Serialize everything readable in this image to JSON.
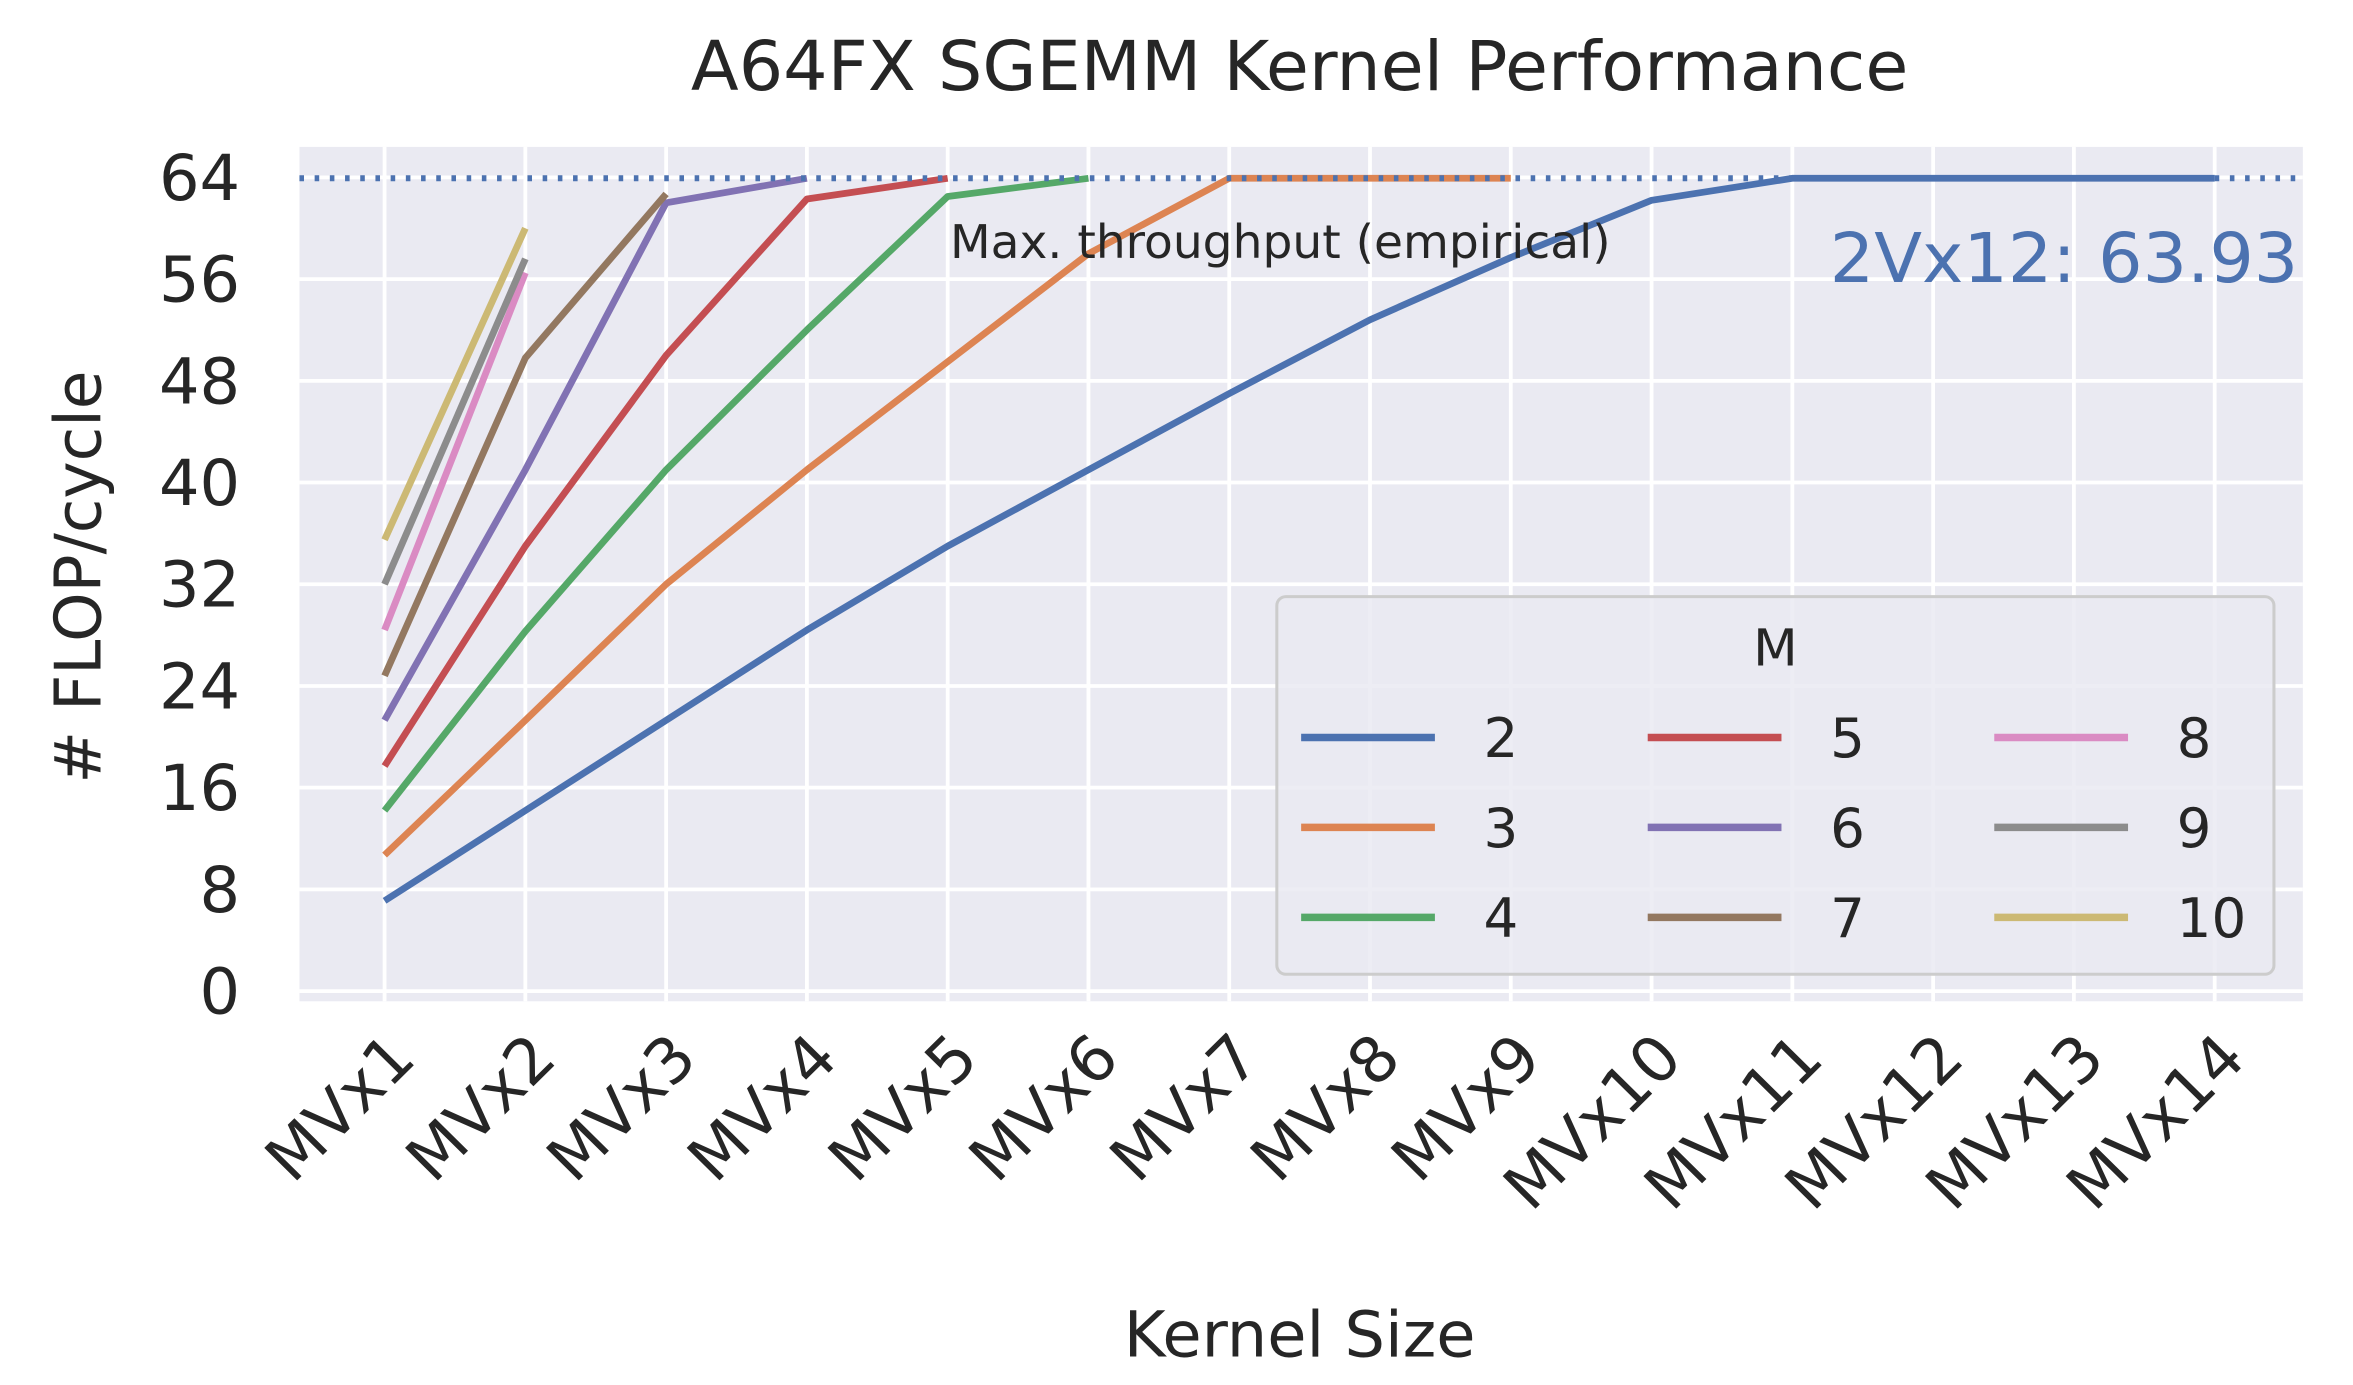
{
  "chart_data": {
    "type": "line",
    "title": "A64FX SGEMM Kernel Performance",
    "x_label": "Kernel Size",
    "y_label": "# FLOP/cycle",
    "categories": [
      "MVx1",
      "MVx2",
      "MVx3",
      "MVx4",
      "MVx5",
      "MVx6",
      "MVx7",
      "MVx8",
      "MVx9",
      "MVx10",
      "MVx11",
      "MVx12",
      "MVx13",
      "MVx14"
    ],
    "ylim": [
      -0.8,
      66.4
    ],
    "yticks": [
      0,
      8,
      16,
      24,
      32,
      40,
      48,
      56,
      64
    ],
    "grid": true,
    "legend_title": "M",
    "legend_position": "lower right",
    "max_line": {
      "value": 63.93,
      "color": "#4c72b0",
      "label": "Max. throughput (empirical)"
    },
    "annotation": "2Vx12: 63.93",
    "series": [
      {
        "name": "2",
        "color": "#4c72b0",
        "values": [
          7.1,
          14.2,
          21.3,
          28.4,
          35,
          41,
          47,
          52.8,
          57.7,
          62.2,
          63.93,
          63.93,
          63.93,
          63.93
        ]
      },
      {
        "name": "3",
        "color": "#dd8452",
        "values": [
          10.7,
          21.3,
          32,
          41,
          49.5,
          58,
          63.93,
          63.93,
          63.93,
          null,
          null,
          null,
          null,
          null
        ]
      },
      {
        "name": "4",
        "color": "#55a868",
        "values": [
          14.2,
          28.3,
          41,
          52,
          62.5,
          63.93,
          null,
          null,
          null,
          null,
          null,
          null,
          null,
          null
        ]
      },
      {
        "name": "5",
        "color": "#c44e52",
        "values": [
          17.7,
          35,
          50,
          62.3,
          63.93,
          null,
          null,
          null,
          null,
          null,
          null,
          null,
          null,
          null
        ]
      },
      {
        "name": "6",
        "color": "#8172b3",
        "values": [
          21.3,
          41,
          62,
          63.93,
          null,
          null,
          null,
          null,
          null,
          null,
          null,
          null,
          null,
          null
        ]
      },
      {
        "name": "7",
        "color": "#937860",
        "values": [
          24.8,
          49.8,
          62.7,
          null,
          null,
          null,
          null,
          null,
          null,
          null,
          null,
          null,
          null,
          null
        ]
      },
      {
        "name": "8",
        "color": "#da8bc3",
        "values": [
          28.4,
          56.5,
          null,
          null,
          null,
          null,
          null,
          null,
          null,
          null,
          null,
          null,
          null,
          null
        ]
      },
      {
        "name": "9",
        "color": "#8c8c8c",
        "values": [
          32,
          57.6,
          null,
          null,
          null,
          null,
          null,
          null,
          null,
          null,
          null,
          null,
          null,
          null
        ]
      },
      {
        "name": "10",
        "color": "#ccb974",
        "values": [
          35.5,
          60,
          null,
          null,
          null,
          null,
          null,
          null,
          null,
          null,
          null,
          null,
          null,
          null
        ]
      }
    ]
  }
}
